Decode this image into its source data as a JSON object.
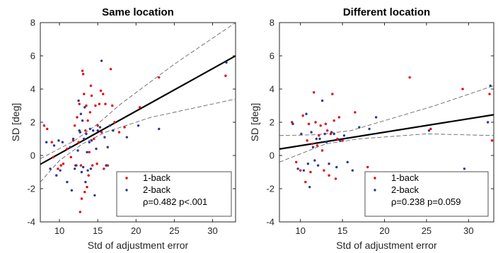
{
  "chart_data": [
    {
      "type": "scatter",
      "title": "Same location",
      "xlabel": "Std of adjustment error",
      "ylabel": "SD [deg]",
      "xlim": [
        7.5,
        33
      ],
      "ylim": [
        -4,
        8
      ],
      "xticks": [
        10,
        15,
        20,
        25,
        30
      ],
      "yticks": [
        -4,
        -2,
        0,
        2,
        4,
        6,
        8
      ],
      "legend": {
        "position": "bottom-right",
        "stat": "ρ=0.482 p<.001"
      },
      "fit": {
        "slope": 0.256,
        "intercept": -2.45
      },
      "ci_upper": [
        [
          7.5,
          -0.2
        ],
        [
          12,
          0.9
        ],
        [
          15,
          1.9
        ],
        [
          18,
          3.1
        ],
        [
          25,
          5.5
        ],
        [
          33,
          8.0
        ]
      ],
      "ci_lower": [
        [
          7.5,
          -1.6
        ],
        [
          10,
          -0.3
        ],
        [
          13,
          0.7
        ],
        [
          16,
          1.4
        ],
        [
          22,
          2.3
        ],
        [
          33,
          3.4
        ]
      ],
      "series": [
        {
          "name": "1-back",
          "color": "#e8000b",
          "points": [
            [
              8.0,
              1.8
            ],
            [
              8.4,
              1.6
            ],
            [
              9.0,
              0.8
            ],
            [
              9.2,
              -0.1
            ],
            [
              9.8,
              -0.8
            ],
            [
              10.2,
              -0.6
            ],
            [
              10.5,
              -0.5
            ],
            [
              11.0,
              0.4
            ],
            [
              11.5,
              -0.1
            ],
            [
              11.8,
              0.9
            ],
            [
              12.0,
              1.8
            ],
            [
              12.1,
              -0.6
            ],
            [
              12.3,
              2.3
            ],
            [
              12.5,
              0.8
            ],
            [
              12.6,
              3.1
            ],
            [
              12.7,
              -3.4
            ],
            [
              12.8,
              -0.6
            ],
            [
              12.9,
              -2.6
            ],
            [
              13.0,
              5.1
            ],
            [
              13.1,
              4.9
            ],
            [
              13.2,
              3.7
            ],
            [
              13.3,
              -2.2
            ],
            [
              13.4,
              1.5
            ],
            [
              13.5,
              3.0
            ],
            [
              13.6,
              -1.9
            ],
            [
              13.7,
              2.1
            ],
            [
              13.8,
              -1.2
            ],
            [
              13.9,
              0.2
            ],
            [
              14.0,
              2.6
            ],
            [
              14.1,
              4.2
            ],
            [
              14.2,
              3.6
            ],
            [
              14.3,
              -0.6
            ],
            [
              14.5,
              1.0
            ],
            [
              14.7,
              3.0
            ],
            [
              14.9,
              -0.5
            ],
            [
              15.0,
              1.8
            ],
            [
              15.2,
              3.1
            ],
            [
              15.4,
              3.9
            ],
            [
              15.5,
              1.4
            ],
            [
              15.7,
              3.7
            ],
            [
              15.8,
              -0.8
            ],
            [
              16.0,
              3.1
            ],
            [
              16.3,
              -0.6
            ],
            [
              16.7,
              5.2
            ],
            [
              16.9,
              3.0
            ],
            [
              17.2,
              2.0
            ],
            [
              17.8,
              1.4
            ],
            [
              18.5,
              1.7
            ],
            [
              20.5,
              2.9
            ],
            [
              23.0,
              4.7
            ],
            [
              31.7,
              4.8
            ]
          ]
        },
        {
          "name": "2-back",
          "color": "#2b3a8f",
          "points": [
            [
              8.3,
              0.8
            ],
            [
              8.8,
              -0.8
            ],
            [
              9.3,
              0.6
            ],
            [
              9.6,
              -1.2
            ],
            [
              9.9,
              0.9
            ],
            [
              10.1,
              -0.9
            ],
            [
              10.4,
              0.8
            ],
            [
              11.0,
              -1.6
            ],
            [
              11.4,
              0.5
            ],
            [
              11.6,
              -2.1
            ],
            [
              11.8,
              1.0
            ],
            [
              12.0,
              -0.8
            ],
            [
              12.2,
              -0.6
            ],
            [
              12.4,
              0.3
            ],
            [
              12.5,
              3.3
            ],
            [
              12.6,
              1.5
            ],
            [
              12.7,
              1.4
            ],
            [
              12.8,
              2.5
            ],
            [
              12.9,
              -1.0
            ],
            [
              13.0,
              2.1
            ],
            [
              13.1,
              -0.7
            ],
            [
              13.2,
              1.0
            ],
            [
              13.3,
              2.9
            ],
            [
              13.4,
              -1.6
            ],
            [
              13.5,
              1.3
            ],
            [
              13.6,
              0.2
            ],
            [
              13.7,
              -0.9
            ],
            [
              13.9,
              0.8
            ],
            [
              14.0,
              1.6
            ],
            [
              14.1,
              -0.8
            ],
            [
              14.2,
              0.9
            ],
            [
              14.4,
              1.5
            ],
            [
              14.6,
              -2.4
            ],
            [
              14.8,
              0.4
            ],
            [
              15.0,
              1.5
            ],
            [
              15.3,
              1.7
            ],
            [
              15.5,
              5.7
            ],
            [
              15.9,
              1.1
            ],
            [
              16.1,
              -0.6
            ],
            [
              16.3,
              0.5
            ],
            [
              16.6,
              1.8
            ],
            [
              17.0,
              1.5
            ],
            [
              18.8,
              1.1
            ],
            [
              20.3,
              1.8
            ],
            [
              23.0,
              1.6
            ],
            [
              31.8,
              5.6
            ]
          ]
        }
      ]
    },
    {
      "type": "scatter",
      "title": "Different location",
      "xlabel": "Std of adjustment error",
      "ylabel": "SD [deg]",
      "xlim": [
        7.5,
        33
      ],
      "ylim": [
        -4,
        8
      ],
      "xticks": [
        10,
        15,
        20,
        25,
        30
      ],
      "yticks": [
        -4,
        -2,
        0,
        2,
        4,
        6,
        8
      ],
      "legend": {
        "position": "bottom-right",
        "stat": "ρ=0.238 p=0.059"
      },
      "fit": {
        "slope": 0.081,
        "intercept": -0.22
      },
      "ci_upper": [
        [
          7.5,
          1.2
        ],
        [
          12,
          1.25
        ],
        [
          16,
          1.5
        ],
        [
          20,
          2.1
        ],
        [
          26,
          3.0
        ],
        [
          33,
          4.2
        ]
      ],
      "ci_lower": [
        [
          7.5,
          -0.4
        ],
        [
          10,
          0.1
        ],
        [
          13,
          0.7
        ],
        [
          17,
          1.0
        ],
        [
          25,
          1.3
        ],
        [
          33,
          1.2
        ]
      ],
      "series": [
        {
          "name": "1-back",
          "color": "#e8000b",
          "points": [
            [
              9.0,
              2.0
            ],
            [
              9.5,
              -0.4
            ],
            [
              10.0,
              -0.9
            ],
            [
              10.3,
              2.4
            ],
            [
              10.6,
              -1.6
            ],
            [
              10.8,
              0.9
            ],
            [
              11.0,
              1.9
            ],
            [
              11.2,
              -1.0
            ],
            [
              11.4,
              0.7
            ],
            [
              11.6,
              3.8
            ],
            [
              11.8,
              2.0
            ],
            [
              12.0,
              0.6
            ],
            [
              12.2,
              1.2
            ],
            [
              12.4,
              1.8
            ],
            [
              12.6,
              0.3
            ],
            [
              12.8,
              -0.9
            ],
            [
              13.0,
              1.9
            ],
            [
              13.2,
              1.5
            ],
            [
              13.4,
              -1.2
            ],
            [
              13.6,
              1.3
            ],
            [
              13.8,
              3.7
            ],
            [
              14.0,
              2.1
            ],
            [
              14.2,
              -1.4
            ],
            [
              14.4,
              1.0
            ],
            [
              14.6,
              2.3
            ],
            [
              15.0,
              0.9
            ],
            [
              16.5,
              2.6
            ],
            [
              18.0,
              -0.7
            ],
            [
              23.0,
              4.7
            ],
            [
              25.5,
              1.6
            ],
            [
              29.3,
              4.0
            ],
            [
              32.5,
              3.7
            ],
            [
              32.8,
              0.9
            ]
          ]
        },
        {
          "name": "2-back",
          "color": "#2b3a8f",
          "points": [
            [
              9.1,
              1.9
            ],
            [
              9.7,
              -0.8
            ],
            [
              10.1,
              1.3
            ],
            [
              10.4,
              -0.9
            ],
            [
              10.7,
              2.5
            ],
            [
              10.9,
              -0.5
            ],
            [
              11.1,
              -1.9
            ],
            [
              11.3,
              1.4
            ],
            [
              11.5,
              0.5
            ],
            [
              11.7,
              -0.3
            ],
            [
              11.9,
              1.0
            ],
            [
              12.1,
              -0.6
            ],
            [
              12.3,
              1.0
            ],
            [
              12.6,
              3.3
            ],
            [
              12.9,
              1.3
            ],
            [
              13.1,
              0.8
            ],
            [
              13.4,
              -0.5
            ],
            [
              13.7,
              1.4
            ],
            [
              14.0,
              1.3
            ],
            [
              14.3,
              -0.7
            ],
            [
              14.7,
              0.9
            ],
            [
              15.2,
              1.2
            ],
            [
              15.6,
              -0.4
            ],
            [
              16.2,
              -0.9
            ],
            [
              17.0,
              1.7
            ],
            [
              18.2,
              1.6
            ],
            [
              19.0,
              2.3
            ],
            [
              25.3,
              1.5
            ],
            [
              29.5,
              -0.8
            ],
            [
              32.3,
              2.0
            ],
            [
              32.6,
              4.2
            ]
          ]
        }
      ]
    }
  ]
}
